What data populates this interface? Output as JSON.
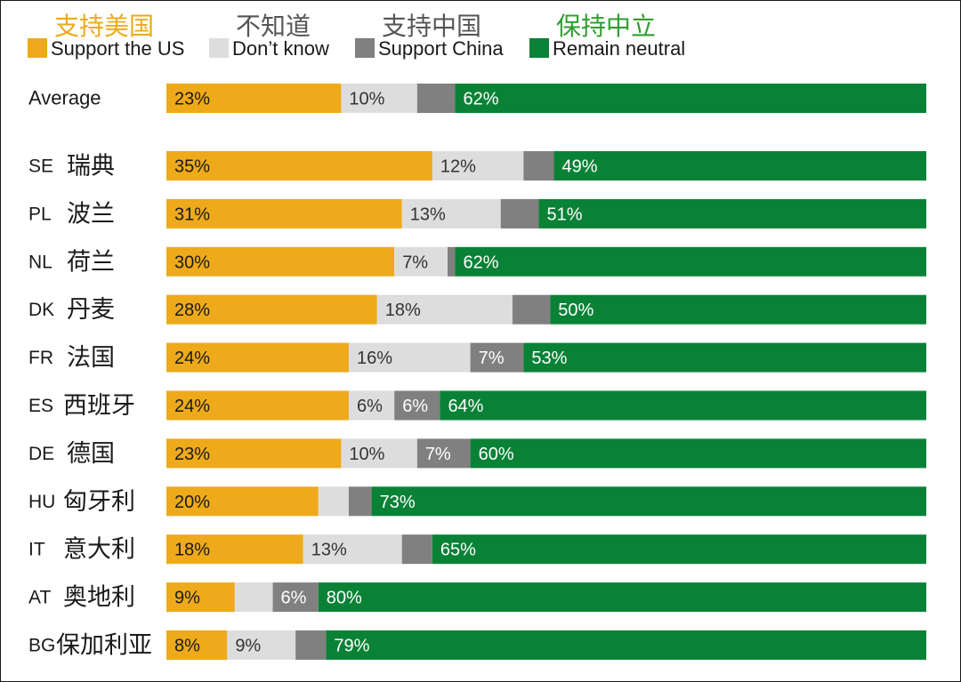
{
  "chart_data": {
    "type": "bar",
    "orientation": "horizontal",
    "stacked": true,
    "legend": [
      {
        "key": "us",
        "cn": "支持美国",
        "en": "Support the US",
        "color": "#EEAA1A",
        "cn_color": "#EEAA1A"
      },
      {
        "key": "dk",
        "cn": "不知道",
        "en": "Don’t know",
        "color": "#DDDDDD",
        "cn_color": "#555555"
      },
      {
        "key": "china",
        "cn": "支持中国",
        "en": "Support China",
        "color": "#808080",
        "cn_color": "#555555"
      },
      {
        "key": "neutral",
        "cn": "保持中立",
        "en": "Remain neutral",
        "color": "#0A8236",
        "cn_color": "#2E9E2E"
      }
    ],
    "series_order": [
      "us",
      "dk",
      "china",
      "neutral"
    ],
    "label_colors": {
      "us": "#1a1a1a",
      "dk": "#333333",
      "china": "#ffffff",
      "neutral": "#ffffff"
    },
    "rows": [
      {
        "code": "Average",
        "cn": "",
        "values": {
          "us": 23,
          "dk": 10,
          "china": 5,
          "neutral": 62
        },
        "labels": {
          "us": "23%",
          "dk": "10%",
          "china": "",
          "neutral": "62%"
        }
      },
      {
        "code": "SE",
        "cn": "瑞典",
        "values": {
          "us": 35,
          "dk": 12,
          "china": 4,
          "neutral": 49
        },
        "labels": {
          "us": "35%",
          "dk": "12%",
          "china": "",
          "neutral": "49%"
        }
      },
      {
        "code": "PL",
        "cn": "波兰",
        "values": {
          "us": 31,
          "dk": 13,
          "china": 5,
          "neutral": 51
        },
        "labels": {
          "us": "31%",
          "dk": "13%",
          "china": "",
          "neutral": "51%"
        }
      },
      {
        "code": "NL",
        "cn": "荷兰",
        "values": {
          "us": 30,
          "dk": 7,
          "china": 1,
          "neutral": 62
        },
        "labels": {
          "us": "30%",
          "dk": "7%",
          "china": "",
          "neutral": "62%"
        }
      },
      {
        "code": "DK",
        "cn": "丹麦",
        "values": {
          "us": 28,
          "dk": 18,
          "china": 5,
          "neutral": 50
        },
        "labels": {
          "us": "28%",
          "dk": "18%",
          "china": "",
          "neutral": "50%"
        }
      },
      {
        "code": "FR",
        "cn": "法国",
        "values": {
          "us": 24,
          "dk": 16,
          "china": 7,
          "neutral": 53
        },
        "labels": {
          "us": "24%",
          "dk": "16%",
          "china": "7%",
          "neutral": "53%"
        }
      },
      {
        "code": "ES",
        "cn": "西班牙",
        "values": {
          "us": 24,
          "dk": 6,
          "china": 6,
          "neutral": 64
        },
        "labels": {
          "us": "24%",
          "dk": "6%",
          "china": "6%",
          "neutral": "64%"
        }
      },
      {
        "code": "DE",
        "cn": "德国",
        "values": {
          "us": 23,
          "dk": 10,
          "china": 7,
          "neutral": 60
        },
        "labels": {
          "us": "23%",
          "dk": "10%",
          "china": "7%",
          "neutral": "60%"
        }
      },
      {
        "code": "HU",
        "cn": "匈牙利",
        "values": {
          "us": 20,
          "dk": 4,
          "china": 3,
          "neutral": 73
        },
        "labels": {
          "us": "20%",
          "dk": "",
          "china": "",
          "neutral": "73%"
        }
      },
      {
        "code": "IT",
        "cn": "意大利",
        "values": {
          "us": 18,
          "dk": 13,
          "china": 4,
          "neutral": 65
        },
        "labels": {
          "us": "18%",
          "dk": "13%",
          "china": "",
          "neutral": "65%"
        }
      },
      {
        "code": "AT",
        "cn": "奥地利",
        "values": {
          "us": 9,
          "dk": 5,
          "china": 6,
          "neutral": 80
        },
        "labels": {
          "us": "9%",
          "dk": "",
          "china": "6%",
          "neutral": "80%"
        }
      },
      {
        "code": "BG",
        "cn": "保加利亚",
        "values": {
          "us": 8,
          "dk": 9,
          "china": 4,
          "neutral": 79
        },
        "labels": {
          "us": "8%",
          "dk": "9%",
          "china": "",
          "neutral": "79%"
        }
      }
    ],
    "xlim": [
      0,
      100
    ]
  }
}
